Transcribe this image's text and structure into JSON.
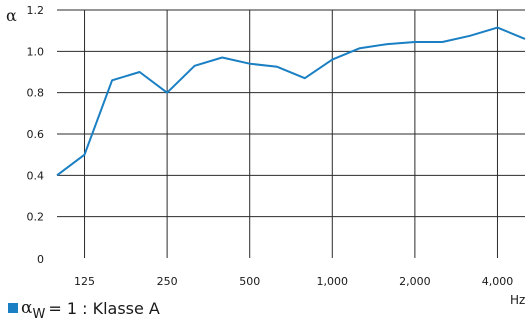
{
  "chart_data": {
    "type": "line",
    "y_symbol": "α",
    "x_unit": "Hz",
    "y_ticks": [
      "1.2",
      "1.0",
      "0.8",
      "0.6",
      "0.4",
      "0.2",
      "0"
    ],
    "x_ticks": [
      "125",
      "250",
      "500",
      "1,000",
      "2,000",
      "4,000"
    ],
    "ylim": [
      0,
      1.2
    ],
    "grid": true,
    "line_color": "#1a7fc3",
    "x": [
      "100",
      "125",
      "160",
      "200",
      "250",
      "315",
      "400",
      "500",
      "630",
      "800",
      "1,000",
      "1,250",
      "1,600",
      "2,000",
      "2,500",
      "3,150",
      "4,000",
      "5,000"
    ],
    "series": [
      {
        "values": [
          0.4,
          0.5,
          0.86,
          0.9,
          0.8,
          0.93,
          0.97,
          0.94,
          0.925,
          0.87,
          0.96,
          1.015,
          1.035,
          1.045,
          1.045,
          1.075,
          1.115,
          1.06
        ]
      }
    ]
  },
  "legend": {
    "symbol": "α",
    "subscript": "W",
    "text": "= 1 : Klasse A"
  }
}
